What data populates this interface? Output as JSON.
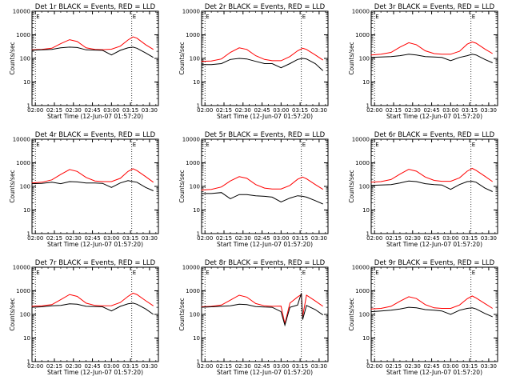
{
  "figure": {
    "yticklabels": [
      "1",
      "10",
      "100",
      "1000",
      "10000"
    ],
    "yticks": [
      1,
      10,
      100,
      1000,
      10000
    ],
    "xticklabels": [
      "02:00",
      "02:15",
      "02:30",
      "02:45",
      "03:00",
      "03:15",
      "03:30"
    ],
    "xticks_min": [
      0,
      15,
      30,
      45,
      60,
      75,
      90
    ],
    "marker_label": "E",
    "marker_time_min": [
      0,
      76
    ],
    "dotted_lines_min": [
      0,
      76
    ],
    "colors": {
      "events": "#000000",
      "lld": "#ff0000",
      "axes": "#000000"
    }
  },
  "chart_data": [
    {
      "type": "line",
      "title": "Det 1r BLACK = Events, RED = LLD",
      "ylabel": "Counts/sec",
      "xlabel": "Start Time (12-Jun-07 01:57:20)",
      "xlim": [
        "01:57:20",
        "03:37:00"
      ],
      "ylim": [
        1,
        10000
      ],
      "yscale": "log",
      "grid": false,
      "x": [
        "01:57",
        "02:05",
        "02:13",
        "02:20",
        "02:27",
        "02:33",
        "02:40",
        "02:47",
        "02:53",
        "03:00",
        "03:07",
        "03:13",
        "03:17",
        "03:20",
        "03:27",
        "03:33"
      ],
      "series": [
        {
          "name": "Events",
          "color": "#000000",
          "values": [
            220,
            230,
            240,
            280,
            300,
            290,
            230,
            225,
            220,
            140,
            220,
            280,
            300,
            270,
            170,
            110
          ]
        },
        {
          "name": "LLD",
          "color": "#ff0000",
          "values": [
            230,
            240,
            270,
            420,
            620,
            520,
            280,
            240,
            235,
            245,
            330,
            600,
            820,
            720,
            380,
            240
          ]
        }
      ]
    },
    {
      "type": "line",
      "title": "Det 2r BLACK = Events, RED = LLD",
      "ylabel": "Counts/sec",
      "xlabel": "Start Time (12-Jun-07 01:57:20)",
      "xlim": [
        "01:57:20",
        "03:37:00"
      ],
      "ylim": [
        1,
        10000
      ],
      "yscale": "log",
      "grid": false,
      "x": [
        "01:57",
        "02:05",
        "02:13",
        "02:20",
        "02:27",
        "02:33",
        "02:40",
        "02:47",
        "02:53",
        "03:00",
        "03:07",
        "03:13",
        "03:17",
        "03:20",
        "03:27",
        "03:33"
      ],
      "series": [
        {
          "name": "Events",
          "color": "#000000",
          "values": [
            55,
            55,
            60,
            90,
            100,
            95,
            75,
            60,
            60,
            40,
            60,
            90,
            100,
            95,
            60,
            30
          ]
        },
        {
          "name": "LLD",
          "color": "#ff0000",
          "values": [
            75,
            78,
            95,
            180,
            280,
            240,
            130,
            90,
            80,
            80,
            120,
            210,
            270,
            240,
            140,
            85
          ]
        }
      ]
    },
    {
      "type": "line",
      "title": "Det 3r BLACK = Events, RED = LLD",
      "ylabel": "Counts/sec",
      "xlabel": "Start Time (12-Jun-07 01:57:20)",
      "xlim": [
        "01:57:20",
        "03:37:00"
      ],
      "ylim": [
        1,
        10000
      ],
      "yscale": "log",
      "grid": false,
      "x": [
        "01:57",
        "02:05",
        "02:13",
        "02:20",
        "02:27",
        "02:33",
        "02:40",
        "02:47",
        "02:53",
        "03:00",
        "03:07",
        "03:13",
        "03:17",
        "03:20",
        "03:27",
        "03:33"
      ],
      "series": [
        {
          "name": "Events",
          "color": "#000000",
          "values": [
            110,
            115,
            120,
            130,
            150,
            140,
            120,
            115,
            110,
            80,
            110,
            130,
            150,
            140,
            90,
            65
          ]
        },
        {
          "name": "LLD",
          "color": "#ff0000",
          "values": [
            140,
            150,
            180,
            300,
            460,
            380,
            210,
            160,
            150,
            150,
            200,
            400,
            500,
            440,
            250,
            160
          ]
        }
      ]
    },
    {
      "type": "line",
      "title": "Det 4r BLACK = Events, RED = LLD",
      "ylabel": "Counts/sec",
      "xlabel": "Start Time (12-Jun-07 01:57:20)",
      "xlim": [
        "01:57:20",
        "03:37:00"
      ],
      "ylim": [
        1,
        10000
      ],
      "yscale": "log",
      "grid": false,
      "x": [
        "01:57",
        "02:05",
        "02:13",
        "02:20",
        "02:27",
        "02:33",
        "02:40",
        "02:47",
        "02:53",
        "03:00",
        "03:07",
        "03:13",
        "03:17",
        "03:20",
        "03:27",
        "03:33"
      ],
      "series": [
        {
          "name": "Events",
          "color": "#000000",
          "values": [
            130,
            135,
            150,
            130,
            160,
            155,
            140,
            140,
            135,
            90,
            140,
            175,
            160,
            150,
            90,
            65
          ]
        },
        {
          "name": "LLD",
          "color": "#ff0000",
          "values": [
            140,
            150,
            190,
            320,
            520,
            430,
            240,
            170,
            160,
            160,
            220,
            430,
            560,
            470,
            260,
            150
          ]
        }
      ]
    },
    {
      "type": "line",
      "title": "Det 5r BLACK = Events, RED = LLD",
      "ylabel": "Counts/sec",
      "xlabel": "Start Time (12-Jun-07 01:57:20)",
      "xlim": [
        "01:57:20",
        "03:37:00"
      ],
      "ylim": [
        1,
        10000
      ],
      "yscale": "log",
      "grid": false,
      "x": [
        "01:57",
        "02:05",
        "02:13",
        "02:20",
        "02:27",
        "02:33",
        "02:40",
        "02:47",
        "02:53",
        "03:00",
        "03:07",
        "03:13",
        "03:17",
        "03:20",
        "03:27",
        "03:33"
      ],
      "series": [
        {
          "name": "Events",
          "color": "#000000",
          "values": [
            50,
            50,
            55,
            30,
            45,
            45,
            40,
            38,
            35,
            22,
            32,
            40,
            38,
            35,
            25,
            18
          ]
        },
        {
          "name": "LLD",
          "color": "#ff0000",
          "values": [
            70,
            75,
            95,
            170,
            260,
            220,
            120,
            85,
            78,
            78,
            110,
            200,
            250,
            210,
            120,
            75
          ]
        }
      ]
    },
    {
      "type": "line",
      "title": "Det 6r BLACK = Events, RED = LLD",
      "ylabel": "Counts/sec",
      "xlabel": "Start Time (12-Jun-07 01:57:20)",
      "xlim": [
        "01:57:20",
        "03:37:00"
      ],
      "ylim": [
        1,
        10000
      ],
      "yscale": "log",
      "grid": false,
      "x": [
        "01:57",
        "02:05",
        "02:13",
        "02:20",
        "02:27",
        "02:33",
        "02:40",
        "02:47",
        "02:53",
        "03:00",
        "03:07",
        "03:13",
        "03:17",
        "03:20",
        "03:27",
        "03:33"
      ],
      "series": [
        {
          "name": "Events",
          "color": "#000000",
          "values": [
            110,
            115,
            120,
            140,
            170,
            160,
            130,
            120,
            115,
            75,
            120,
            160,
            165,
            150,
            85,
            60
          ]
        },
        {
          "name": "LLD",
          "color": "#ff0000",
          "values": [
            150,
            160,
            195,
            330,
            530,
            440,
            250,
            180,
            165,
            165,
            230,
            440,
            580,
            480,
            270,
            160
          ]
        }
      ]
    },
    {
      "type": "line",
      "title": "Det 7r BLACK = Events, RED = LLD",
      "ylabel": "Counts/sec",
      "xlabel": "Start Time (12-Jun-07 01:57:20)",
      "xlim": [
        "01:57:20",
        "03:37:00"
      ],
      "ylim": [
        1,
        10000
      ],
      "yscale": "log",
      "grid": false,
      "x": [
        "01:57",
        "02:05",
        "02:13",
        "02:20",
        "02:27",
        "02:33",
        "02:40",
        "02:47",
        "02:53",
        "03:00",
        "03:07",
        "03:13",
        "03:17",
        "03:20",
        "03:27",
        "03:33"
      ],
      "series": [
        {
          "name": "Events",
          "color": "#000000",
          "values": [
            200,
            210,
            230,
            240,
            280,
            270,
            220,
            215,
            210,
            140,
            220,
            280,
            300,
            270,
            170,
            100
          ]
        },
        {
          "name": "LLD",
          "color": "#ff0000",
          "values": [
            220,
            230,
            260,
            420,
            700,
            580,
            300,
            240,
            230,
            235,
            320,
            580,
            800,
            700,
            380,
            230
          ]
        }
      ]
    },
    {
      "type": "line",
      "title": "Det 8r BLACK = Events, RED = LLD",
      "ylabel": "Counts/sec",
      "xlabel": "Start Time (12-Jun-07 01:57:20)",
      "xlim": [
        "01:57:20",
        "03:37:00"
      ],
      "ylim": [
        1,
        10000
      ],
      "yscale": "log",
      "grid": false,
      "x": [
        "01:57",
        "02:05",
        "02:13",
        "02:20",
        "02:27",
        "02:33",
        "02:40",
        "02:47",
        "02:53",
        "03:00",
        "03:03",
        "03:07",
        "03:13",
        "03:16",
        "03:17",
        "03:20",
        "03:27",
        "03:33"
      ],
      "series": [
        {
          "name": "Events",
          "color": "#000000",
          "values": [
            200,
            210,
            220,
            230,
            270,
            260,
            215,
            205,
            200,
            130,
            35,
            200,
            250,
            800,
            60,
            240,
            160,
            95
          ]
        },
        {
          "name": "LLD",
          "color": "#ff0000",
          "values": [
            210,
            220,
            250,
            400,
            650,
            540,
            290,
            230,
            220,
            225,
            40,
            300,
            550,
            700,
            80,
            650,
            370,
            220
          ]
        }
      ]
    },
    {
      "type": "line",
      "title": "Det 9r BLACK = Events, RED = LLD",
      "ylabel": "Counts/sec",
      "xlabel": "Start Time (12-Jun-07 01:57:20)",
      "xlim": [
        "01:57:20",
        "03:37:00"
      ],
      "ylim": [
        1,
        10000
      ],
      "yscale": "log",
      "grid": false,
      "x": [
        "01:57",
        "02:05",
        "02:13",
        "02:20",
        "02:27",
        "02:33",
        "02:40",
        "02:47",
        "02:53",
        "03:00",
        "03:07",
        "03:13",
        "03:17",
        "03:20",
        "03:27",
        "03:33"
      ],
      "series": [
        {
          "name": "Events",
          "color": "#000000",
          "values": [
            130,
            140,
            150,
            170,
            200,
            190,
            160,
            150,
            140,
            100,
            150,
            180,
            190,
            170,
            110,
            80
          ]
        },
        {
          "name": "LLD",
          "color": "#ff0000",
          "values": [
            170,
            180,
            220,
            360,
            560,
            470,
            260,
            190,
            180,
            180,
            250,
            460,
            600,
            500,
            290,
            180
          ]
        }
      ]
    }
  ]
}
